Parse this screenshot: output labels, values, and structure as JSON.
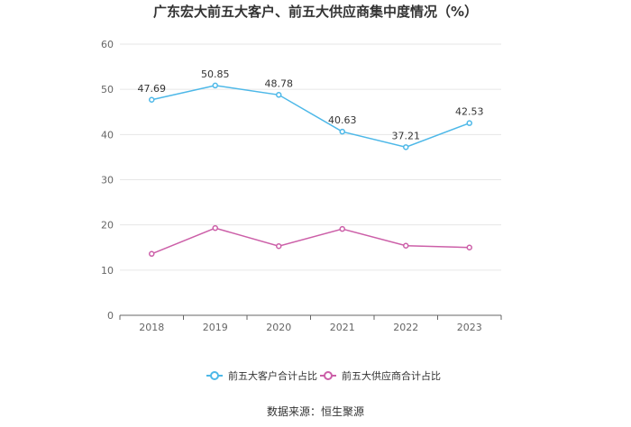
{
  "chart_data": {
    "type": "line",
    "title": "广东宏大前五大客户、前五大供应商集中度情况（%）",
    "x": [
      "2018",
      "2019",
      "2020",
      "2021",
      "2022",
      "2023"
    ],
    "ylim": [
      0,
      60
    ],
    "yticks": [
      0,
      10,
      20,
      30,
      40,
      50,
      60
    ],
    "grid": true,
    "legend_position": "bottom",
    "series": [
      {
        "name": "前五大客户合计占比",
        "color": "#4db8e8",
        "values": [
          47.69,
          50.85,
          48.78,
          40.63,
          37.21,
          42.53
        ],
        "labels": [
          "47.69",
          "50.85",
          "48.78",
          "40.63",
          "37.21",
          "42.53"
        ]
      },
      {
        "name": "前五大供应商合计占比",
        "color": "#cc5fa8",
        "values": [
          13.6,
          19.3,
          15.3,
          19.1,
          15.4,
          15.0
        ]
      }
    ]
  },
  "source": "数据来源：恒生聚源"
}
